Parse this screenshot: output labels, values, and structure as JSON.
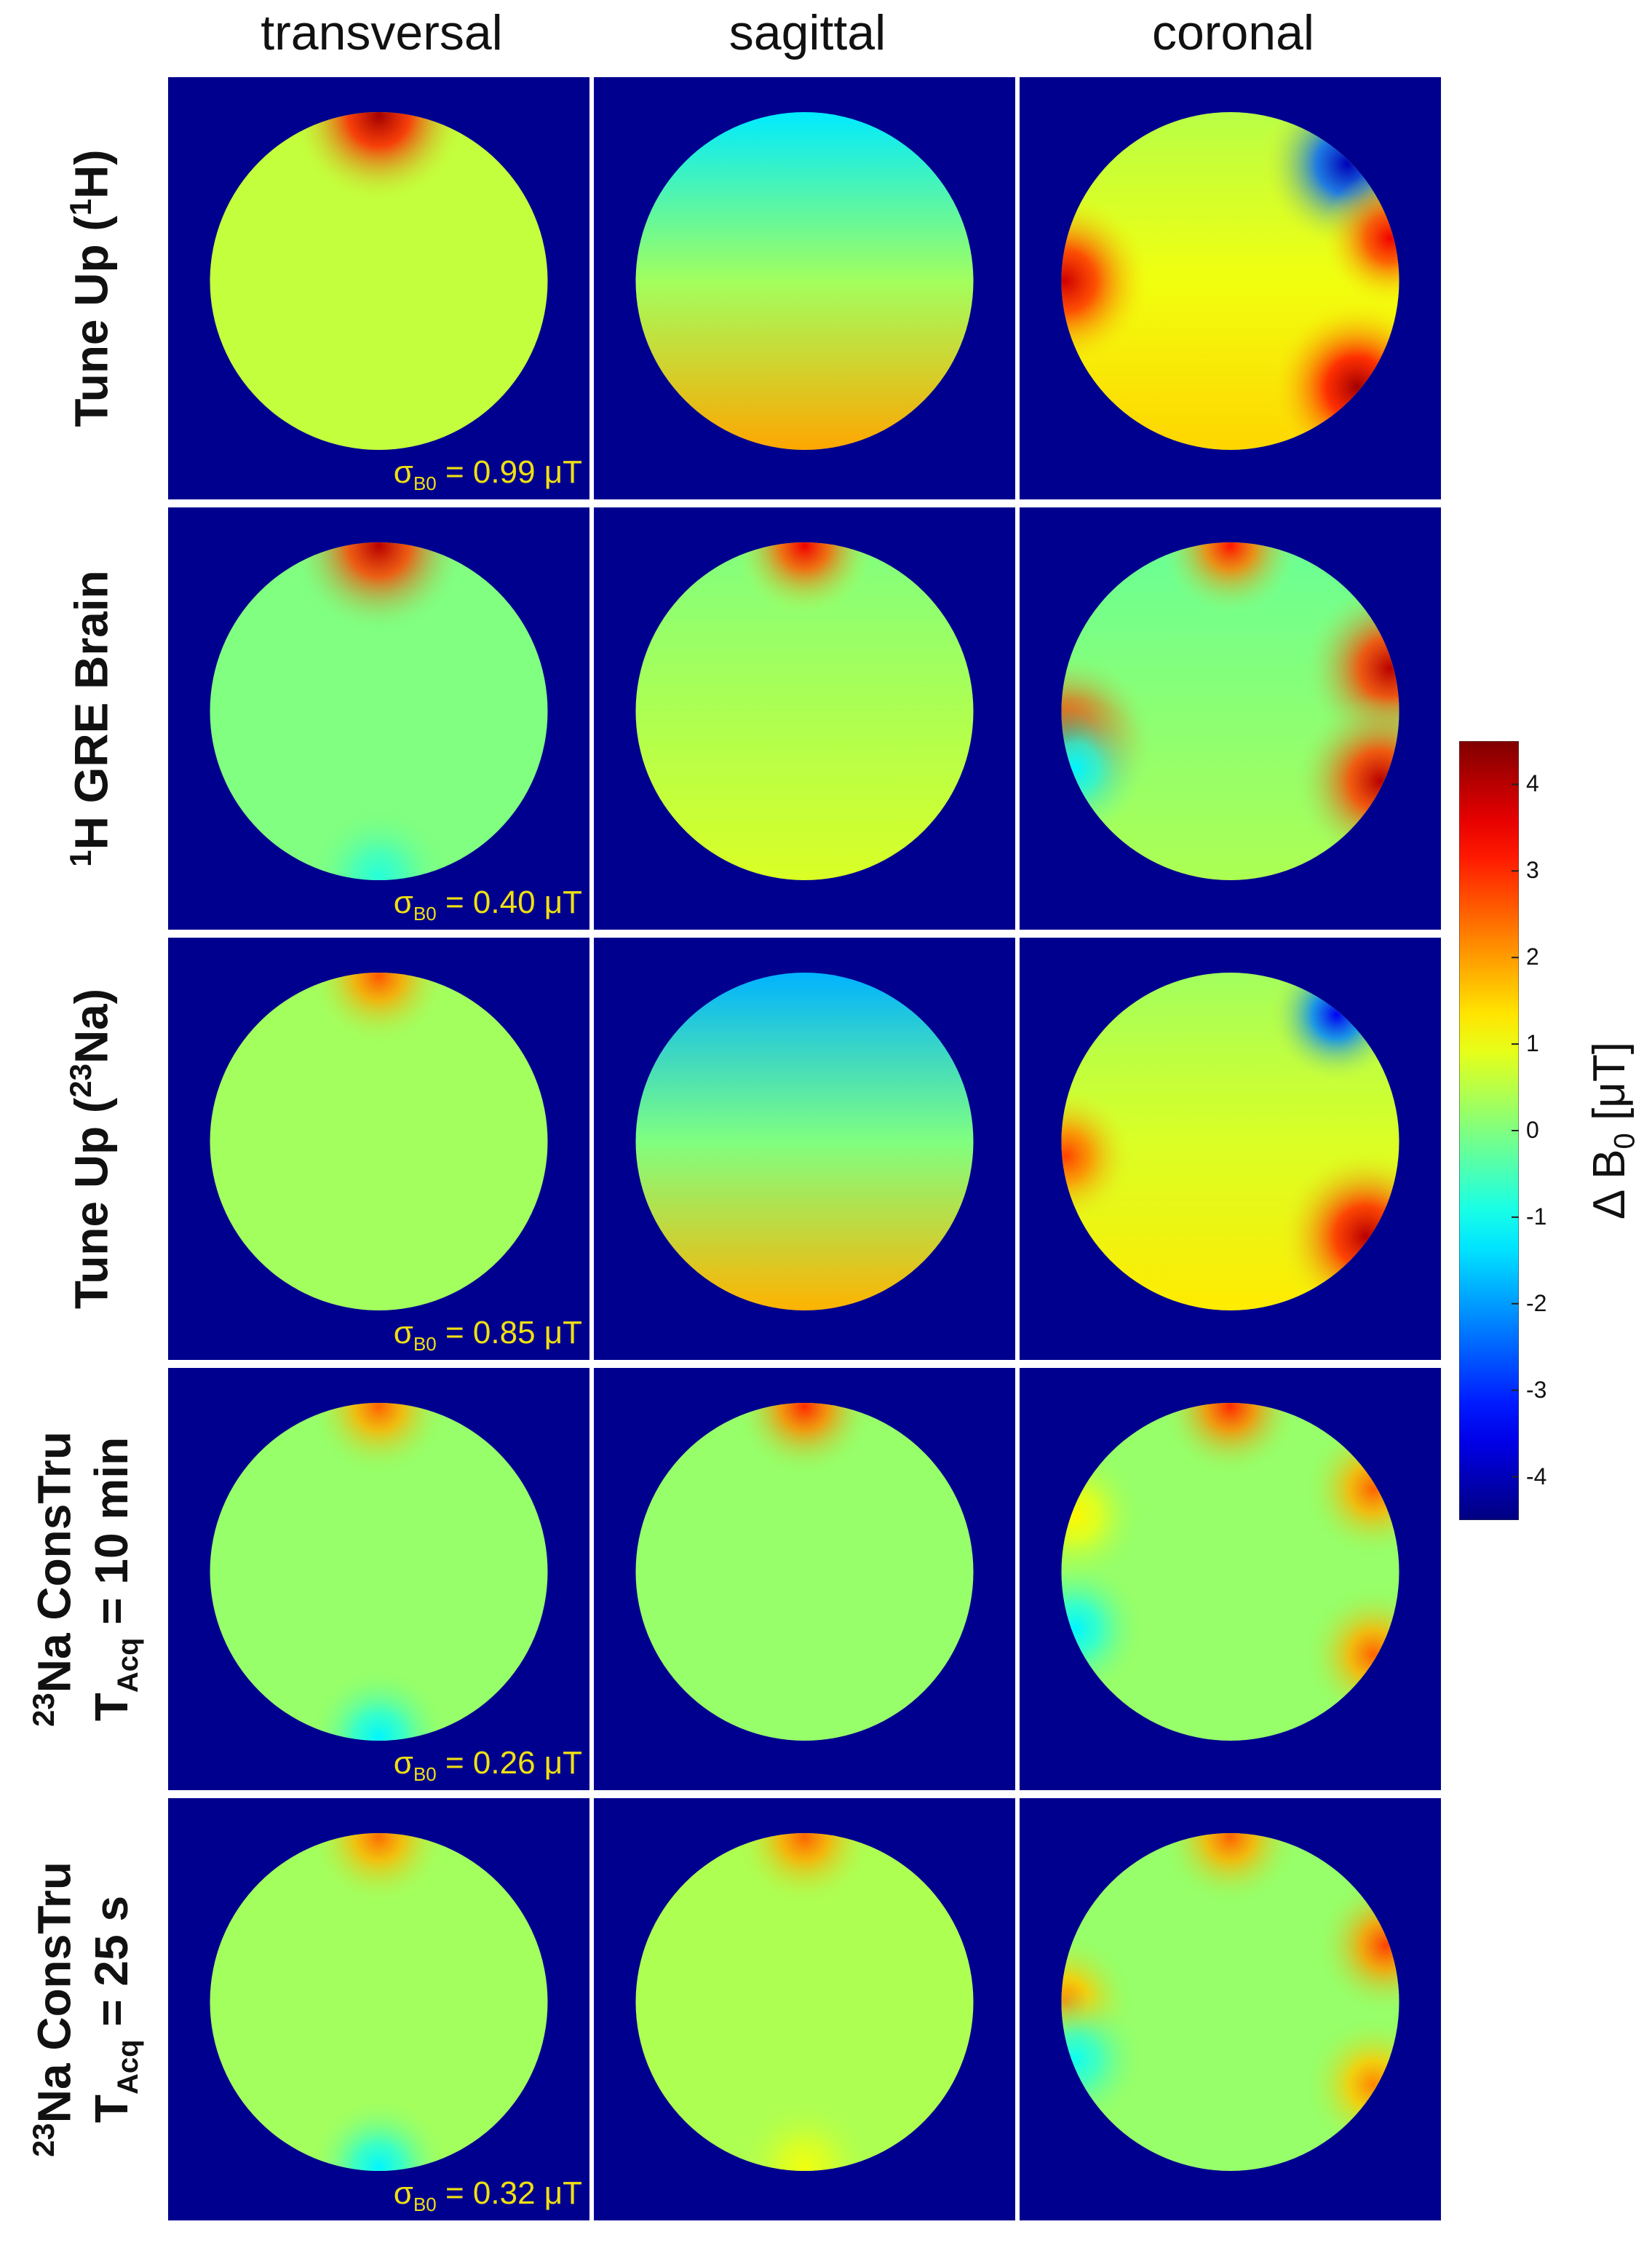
{
  "chart_data": {
    "type": "heatmap",
    "columns": [
      "transversal",
      "sagittal",
      "coronal"
    ],
    "rows": [
      {
        "label_lines": [
          {
            "pre": "Tune Up (",
            "sup": "1",
            "post": "H)"
          }
        ],
        "sigma_value": "0.99 μT",
        "maps": [
          {
            "base": 0.6,
            "gradient": 0,
            "hotspots": [
              {
                "angle": 90,
                "value": 4.2
              }
            ]
          },
          {
            "base": 0.3,
            "gradient": 1.6,
            "hotspots": []
          },
          {
            "base": 1.0,
            "gradient": 0.5,
            "hotspots": [
              {
                "angle": 45,
                "value": -4.0
              },
              {
                "angle": 15,
                "value": 3.5
              },
              {
                "angle": 180,
                "value": 3.8
              },
              {
                "angle": -40,
                "value": 4.2
              }
            ]
          }
        ]
      },
      {
        "label_lines": [
          {
            "pre": "",
            "sup": "1",
            "post": "H GRE Brain"
          }
        ],
        "sigma_value": "0.40 μT",
        "maps": [
          {
            "base": 0.0,
            "gradient": 0,
            "hotspots": [
              {
                "angle": 90,
                "value": 4.0
              },
              {
                "angle": -90,
                "value": -0.8
              }
            ]
          },
          {
            "base": 0.4,
            "gradient": 0.4,
            "hotspots": [
              {
                "angle": 90,
                "value": 3.5
              }
            ]
          },
          {
            "base": 0.1,
            "gradient": 0.3,
            "hotspots": [
              {
                "angle": 90,
                "value": 3.2
              },
              {
                "angle": 15,
                "value": 4.0
              },
              {
                "angle": 190,
                "value": 4.0
              },
              {
                "angle": -25,
                "value": 4.0
              },
              {
                "angle": 200,
                "value": -1.2
              }
            ]
          }
        ]
      },
      {
        "label_lines": [
          {
            "pre": "Tune Up (",
            "sup": "23",
            "post": "Na)"
          }
        ],
        "sigma_value": "0.85 μT",
        "maps": [
          {
            "base": 0.3,
            "gradient": 0,
            "hotspots": [
              {
                "angle": 90,
                "value": 2.6
              }
            ]
          },
          {
            "base": 0.0,
            "gradient": 1.8,
            "hotspots": []
          },
          {
            "base": 0.8,
            "gradient": 0.5,
            "hotspots": [
              {
                "angle": 50,
                "value": -3.5
              },
              {
                "angle": 185,
                "value": 2.8
              },
              {
                "angle": -35,
                "value": 4.0
              }
            ]
          }
        ]
      },
      {
        "label_lines": [
          {
            "pre": "",
            "sup": "23",
            "post": "Na ConsTru"
          },
          {
            "pre": "T",
            "sub": "Acq",
            "post": " = 10 min"
          }
        ],
        "sigma_value": "0.26 μT",
        "maps": [
          {
            "base": 0.2,
            "gradient": 0,
            "hotspots": [
              {
                "angle": 90,
                "value": 2.5
              },
              {
                "angle": -90,
                "value": -1.2
              }
            ]
          },
          {
            "base": 0.2,
            "gradient": 0,
            "hotspots": [
              {
                "angle": 90,
                "value": 3.0
              }
            ]
          },
          {
            "base": 0.2,
            "gradient": 0,
            "hotspots": [
              {
                "angle": 90,
                "value": 3.0
              },
              {
                "angle": 30,
                "value": 2.5
              },
              {
                "angle": -30,
                "value": 2.5
              },
              {
                "angle": 200,
                "value": -1.2
              },
              {
                "angle": 160,
                "value": 1.2
              }
            ]
          }
        ]
      },
      {
        "label_lines": [
          {
            "pre": "",
            "sup": "23",
            "post": "Na ConsTru"
          },
          {
            "pre": "T",
            "sub": "Acq",
            "post": " = 25 s"
          }
        ],
        "sigma_value": "0.32 μT",
        "maps": [
          {
            "base": 0.3,
            "gradient": 0,
            "hotspots": [
              {
                "angle": 90,
                "value": 2.4
              },
              {
                "angle": -90,
                "value": -1.2
              }
            ]
          },
          {
            "base": 0.4,
            "gradient": 0,
            "hotspots": [
              {
                "angle": 90,
                "value": 2.5
              },
              {
                "angle": -90,
                "value": 1.0
              }
            ]
          },
          {
            "base": 0.2,
            "gradient": 0,
            "hotspots": [
              {
                "angle": 90,
                "value": 2.5
              },
              {
                "angle": 20,
                "value": 2.8
              },
              {
                "angle": -30,
                "value": 2.2
              },
              {
                "angle": 180,
                "value": 2.2
              },
              {
                "angle": 200,
                "value": -1.0
              }
            ]
          }
        ]
      }
    ],
    "sigma_label": {
      "symbol": "σ",
      "sub": "B0",
      "eq": " = "
    },
    "colorbar": {
      "range": [
        -4.5,
        4.5
      ],
      "ticks": [
        4,
        3,
        2,
        1,
        0,
        -1,
        -2,
        -3,
        -4
      ],
      "title": "Δ B",
      "title_sub": "0",
      "title_unit": " [μT]"
    },
    "colormap": "jet",
    "background_color": "#00008f"
  }
}
